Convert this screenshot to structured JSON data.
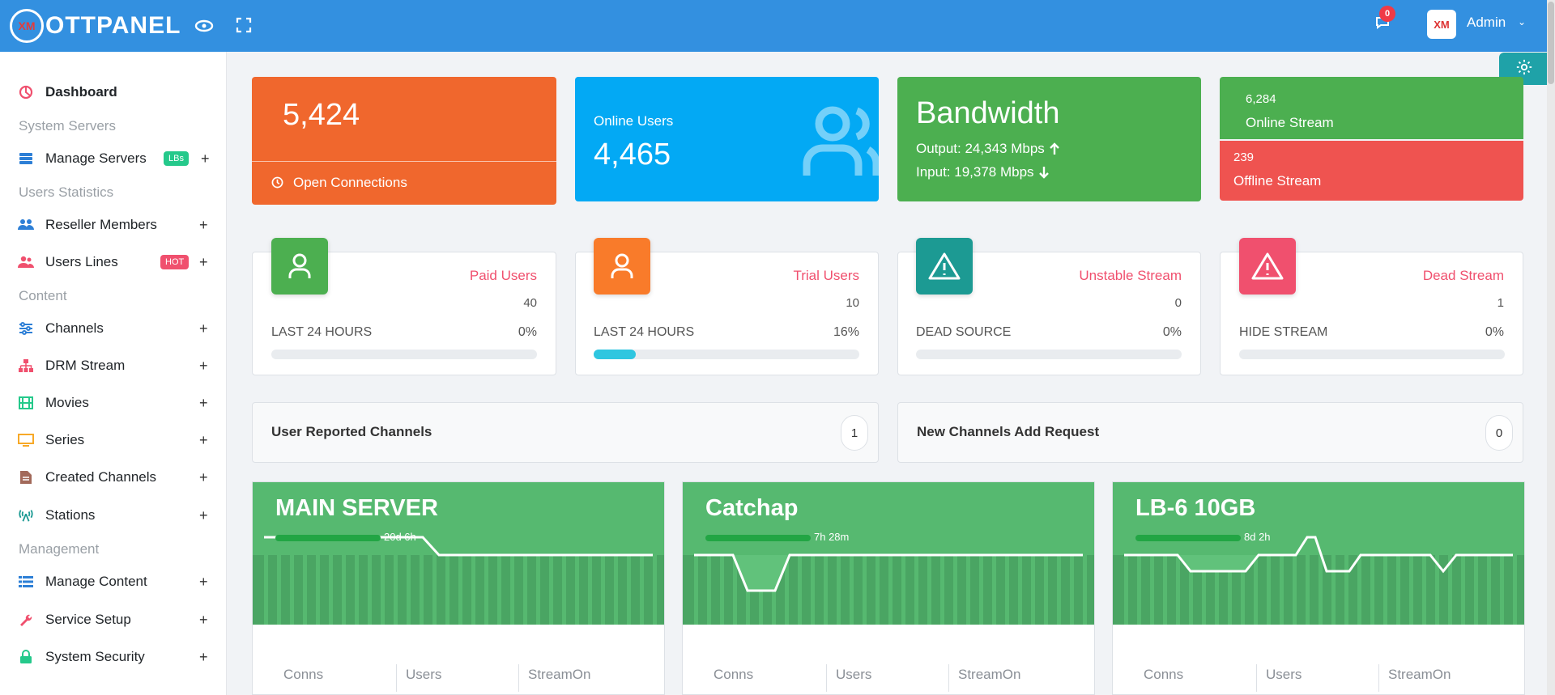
{
  "brand": {
    "logo_badge": "XM",
    "name": "OTTPANEL"
  },
  "topbar": {
    "notifications": "0",
    "avatar_text": "XM",
    "user": "Admin",
    "caret": "⌄"
  },
  "sidebar": {
    "dashboard": "Dashboard",
    "heading_system": "System Servers",
    "manage_servers": "Manage Servers",
    "manage_servers_badge": "LBs",
    "heading_users": "Users Statistics",
    "reseller_members": "Reseller Members",
    "users_lines": "Users Lines",
    "users_lines_badge": "HOT",
    "heading_content": "Content",
    "channels": "Channels",
    "drm_stream": "DRM Stream",
    "movies": "Movies",
    "series": "Series",
    "created_channels": "Created Channels",
    "stations": "Stations",
    "heading_management": "Management",
    "manage_content": "Manage Content",
    "service_setup": "Service Setup",
    "system_security": "System Security",
    "plus": "+"
  },
  "stats": {
    "open_connections": {
      "value": "5,424",
      "label": "Open Connections"
    },
    "online_users": {
      "label": "Online Users",
      "value": "4,465"
    },
    "bandwidth": {
      "title": "Bandwidth",
      "output": "Output: 24,343 Mbps",
      "input": "Input: 19,378 Mbps"
    },
    "online_stream": {
      "value": "6,284",
      "label": "Online Stream"
    },
    "offline_stream": {
      "value": "239",
      "label": "Offline Stream"
    }
  },
  "metrics": [
    {
      "title": "Paid Users",
      "count": "40",
      "sub": "LAST 24 HOURS",
      "pct": "0%",
      "progress": 0
    },
    {
      "title": "Trial Users",
      "count": "10",
      "sub": "LAST 24 HOURS",
      "pct": "16%",
      "progress": 16
    },
    {
      "title": "Unstable Stream",
      "count": "0",
      "sub": "DEAD SOURCE",
      "pct": "0%",
      "progress": 0
    },
    {
      "title": "Dead Stream",
      "count": "1",
      "sub": "HIDE STREAM",
      "pct": "0%",
      "progress": 0
    }
  ],
  "reports": {
    "reported_label": "User Reported Channels",
    "reported_count": "1",
    "requests_label": "New Channels Add Request",
    "requests_count": "0"
  },
  "servers": [
    {
      "name": "MAIN SERVER",
      "uptime": "20d 6h"
    },
    {
      "name": "Catchap",
      "uptime": "7h 28m"
    },
    {
      "name": "LB-6 10GB",
      "uptime": "8d 2h"
    }
  ],
  "server_cols": {
    "conns": "Conns",
    "users": "Users",
    "streamon": "StreamOn"
  },
  "colors": {
    "topbar": "#3390e0",
    "orange": "#f0672d",
    "blue": "#03a9f4",
    "green": "#4caf50",
    "red": "#ef5350",
    "accent_pink": "#f0506e",
    "teal": "#1c9a93"
  }
}
